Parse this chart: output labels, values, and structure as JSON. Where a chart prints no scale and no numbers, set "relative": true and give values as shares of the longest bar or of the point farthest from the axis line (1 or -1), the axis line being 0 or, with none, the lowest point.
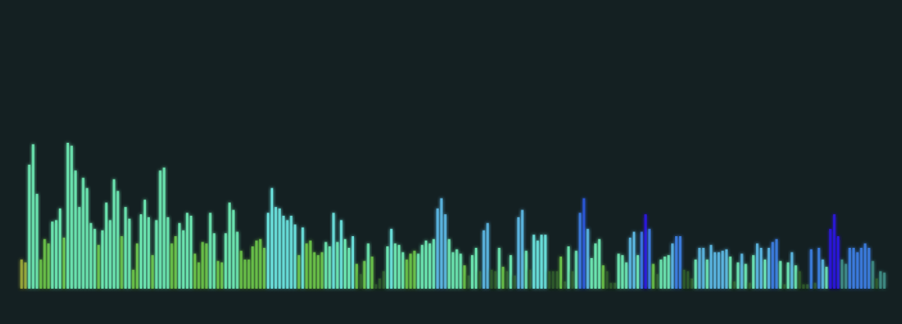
{
  "chart_data": {
    "type": "bar",
    "relative": true,
    "categories": [
      null,
      null,
      null,
      null,
      null,
      null,
      null,
      null,
      null,
      null,
      null,
      null,
      null,
      null,
      null,
      null,
      null,
      null,
      null,
      null,
      null,
      null,
      null,
      null,
      null,
      null,
      null,
      null,
      null,
      null,
      null,
      null,
      null,
      null,
      null,
      null,
      null,
      null,
      null,
      null,
      null,
      null,
      null,
      null,
      null,
      null,
      null,
      null,
      null,
      null,
      null,
      null,
      null,
      null,
      null,
      null,
      null,
      null,
      null,
      null,
      null,
      null,
      null,
      null,
      null,
      null,
      null,
      null,
      null,
      null,
      null,
      null,
      null,
      null,
      null,
      null,
      null,
      null,
      null,
      null,
      null,
      null,
      null,
      null,
      null,
      null,
      null,
      null,
      null,
      null,
      null,
      null,
      null,
      null,
      null,
      null,
      null,
      null,
      null,
      null,
      null,
      null,
      null,
      null,
      null,
      null,
      null,
      null,
      null,
      null,
      null,
      null,
      null,
      null,
      null,
      null,
      null,
      null,
      null,
      null,
      null,
      null,
      null,
      null,
      null,
      null,
      null,
      null,
      null,
      null,
      null,
      null,
      null,
      null,
      null,
      null,
      null,
      null,
      null,
      null,
      null,
      null,
      null,
      null,
      null,
      null,
      null,
      null,
      null,
      null,
      null,
      null,
      null,
      null,
      null,
      null,
      null,
      null,
      null,
      null,
      null,
      null,
      null,
      null,
      null,
      null,
      null,
      null,
      null,
      null,
      null,
      null,
      null,
      null,
      null,
      null,
      null,
      null,
      null,
      null,
      null,
      null,
      null,
      null,
      null,
      null,
      null,
      null,
      null,
      null,
      null,
      null,
      null,
      null,
      null,
      null,
      null,
      null,
      null,
      null,
      null,
      null,
      null,
      null,
      null,
      null,
      null,
      null,
      null,
      null,
      null,
      null,
      null,
      null,
      null,
      null,
      null,
      null,
      null,
      null,
      null,
      null,
      null,
      null,
      null
    ],
    "values": [
      0.2,
      0.18,
      0.85,
      0.99,
      0.65,
      0.2,
      0.34,
      0.31,
      0.46,
      0.47,
      0.55,
      0.35,
      1,
      0.98,
      0.81,
      0.56,
      0.76,
      0.69,
      0.45,
      0.41,
      0.3,
      0.4,
      0.59,
      0.47,
      0.75,
      0.67,
      0.36,
      0.56,
      0.48,
      0.13,
      0.31,
      0.51,
      0.61,
      0.49,
      0.23,
      0.47,
      0.81,
      0.83,
      0.49,
      0.31,
      0.36,
      0.45,
      0.4,
      0.52,
      0.5,
      0.24,
      0.18,
      0.32,
      0.31,
      0.52,
      0.38,
      0.19,
      0.18,
      0.38,
      0.59,
      0.54,
      0.39,
      0.26,
      0.2,
      0.2,
      0.29,
      0.33,
      0.34,
      0.28,
      0.52,
      0.69,
      0.56,
      0.55,
      0.5,
      0.47,
      0.5,
      0.44,
      0.23,
      0.42,
      0.31,
      0.33,
      0.25,
      0.23,
      0.25,
      0.32,
      0.29,
      0.52,
      0.32,
      0.47,
      0.34,
      0.28,
      0.36,
      0.17,
      0.1,
      0.19,
      0.31,
      0.22,
      0.03,
      0.07,
      0.12,
      0.29,
      0.41,
      0.31,
      0.3,
      0.25,
      0.2,
      0.24,
      0.26,
      0.24,
      0.3,
      0.33,
      0.31,
      0.34,
      0.55,
      0.62,
      0.51,
      0.34,
      0.25,
      0.27,
      0.24,
      0.16,
      0.09,
      0.23,
      0.28,
      0.12,
      0.4,
      0.45,
      0.13,
      0.12,
      0.28,
      0.15,
      0.12,
      0.23,
      0.09,
      0.49,
      0.54,
      0.26,
      0.13,
      0.37,
      0.33,
      0.37,
      0.37,
      0.12,
      0.12,
      0.12,
      0.22,
      0.05,
      0.29,
      0.12,
      0.26,
      0.52,
      0.62,
      0.41,
      0.21,
      0.31,
      0.34,
      0.16,
      0.12,
      0.04,
      0.04,
      0.24,
      0.23,
      0.18,
      0.35,
      0.39,
      0.23,
      0.39,
      0.51,
      0.41,
      0.17,
      0.1,
      0.2,
      0.22,
      0.23,
      0.31,
      0.36,
      0.36,
      0.13,
      0.12,
      0.07,
      0.2,
      0.28,
      0.28,
      0.2,
      0.3,
      0.25,
      0.25,
      0.26,
      0.27,
      0.22,
      0.05,
      0.18,
      0.24,
      0.17,
      0.04,
      0.23,
      0.31,
      0.28,
      0.2,
      0.28,
      0.32,
      0.34,
      0.19,
      0.03,
      0.18,
      0.25,
      0.16,
      0.12,
      0.03,
      0.03,
      0.27,
      0.04,
      0.28,
      0.2,
      0.15,
      0.41,
      0.51,
      0.36,
      0.2,
      0.17,
      0.28,
      0.28,
      0.25,
      0.28,
      0.31,
      0.28,
      0.19,
      0.07,
      0.12,
      0.11
    ],
    "colors": [
      "#9aa83a",
      "#9aa83a",
      "#6eeab4",
      "#6eeab4",
      "#6eeab4",
      "#6cc448",
      "#6cc448",
      "#6cc448",
      "#6eeab4",
      "#6eeab4",
      "#6eeab4",
      "#6cc448",
      "#6eeab4",
      "#6eeab4",
      "#6eeab4",
      "#6eeab4",
      "#6eeab4",
      "#6eeab4",
      "#6eeab4",
      "#6eeab4",
      "#6cc448",
      "#6eeab4",
      "#6eeab4",
      "#6eeab4",
      "#6eeab4",
      "#6eeab4",
      "#6cc448",
      "#6eeab4",
      "#6eeab4",
      "#6cc448",
      "#6cc448",
      "#6eeab4",
      "#6eeab4",
      "#6eeab4",
      "#6cc448",
      "#6eeab4",
      "#6eeab4",
      "#6eeab4",
      "#6eeab4",
      "#6cc448",
      "#6cc448",
      "#6eeab4",
      "#6eeab4",
      "#6eeab4",
      "#6eeab4",
      "#6cc448",
      "#6cc448",
      "#6cc448",
      "#6cc448",
      "#6eeab4",
      "#6eeab4",
      "#6cc448",
      "#6cc448",
      "#6eeab4",
      "#6eeab4",
      "#6eeab4",
      "#6eeab4",
      "#6cc448",
      "#6cc448",
      "#6cc448",
      "#6cc448",
      "#6cc448",
      "#6cc448",
      "#6cc448",
      "#6ce4e0",
      "#6ce4e0",
      "#6ce4e0",
      "#6ce4e0",
      "#6ce4e0",
      "#6ce4e0",
      "#6ce4e0",
      "#6ce4e0",
      "#6cc448",
      "#6ce4e0",
      "#6cc448",
      "#6cc448",
      "#6cc448",
      "#6cc448",
      "#6cc448",
      "#6eeab4",
      "#6eeab4",
      "#6ce4e0",
      "#6eeab4",
      "#6ce4e0",
      "#6eeab4",
      "#6eeab4",
      "#6ce4e0",
      "#6cc448",
      "#2f5a2c",
      "#6cc448",
      "#6eeab4",
      "#6cc448",
      "#2f5a2c",
      "#2f5a2c",
      "#2f5a2c",
      "#6eeab4",
      "#6ce4e0",
      "#6eeab4",
      "#6eeab4",
      "#6eeab4",
      "#6cc448",
      "#6cc448",
      "#6cc448",
      "#6eeab4",
      "#6eeab4",
      "#6eeab4",
      "#6eeab4",
      "#6eeab4",
      "#5cb8e4",
      "#5cb8e4",
      "#5cb8e4",
      "#6eeab4",
      "#6eeab4",
      "#6eeab4",
      "#6eeab4",
      "#6cc448",
      "#2f5a2c",
      "#6eeab4",
      "#6eeab4",
      "#2f5a2c",
      "#5cb8e4",
      "#5cb8e4",
      "#2f5a2c",
      "#2f5a2c",
      "#6eeab4",
      "#6cc448",
      "#2f5a2c",
      "#6eeab4",
      "#2f5a2c",
      "#5cb8e4",
      "#5cb8e4",
      "#6eeab4",
      "#2f5a2c",
      "#6ce4e0",
      "#6ce4e0",
      "#6ce4e0",
      "#6ce4e0",
      "#2f5a2c",
      "#2f5a2c",
      "#2f5a2c",
      "#6cc448",
      "#2f5a2c",
      "#6eeab4",
      "#2f5a2c",
      "#6eeab4",
      "#3c7ee4",
      "#2a58dc",
      "#5cb8e4",
      "#6eeab4",
      "#6eeab4",
      "#6eeab4",
      "#6cc448",
      "#2f5a2c",
      "#2f5a2c",
      "#2f5a2c",
      "#6eeab4",
      "#6eeab4",
      "#6eeab4",
      "#5cb8e4",
      "#5cb8e4",
      "#6eeab4",
      "#3c7ee4",
      "#2a16e0",
      "#3c7ee4",
      "#6cc448",
      "#2f5a2c",
      "#6eeab4",
      "#6eeab4",
      "#6eeab4",
      "#5cb8e4",
      "#3c7ee4",
      "#3c7ee4",
      "#2f5a2c",
      "#2f5a2c",
      "#2f5a2c",
      "#6eeab4",
      "#5cb8e4",
      "#5cb8e4",
      "#6eeab4",
      "#5cb8e4",
      "#5cb8e4",
      "#5cb8e4",
      "#5cb8e4",
      "#5cb8e4",
      "#6eeab4",
      "#2f5a2c",
      "#6eeab4",
      "#5cb8e4",
      "#6eeab4",
      "#2f5a2c",
      "#6eeab4",
      "#5cb8e4",
      "#5cb8e4",
      "#6eeab4",
      "#5cb8e4",
      "#3c7ee4",
      "#3c7ee4",
      "#6eeab4",
      "#2f5a2c",
      "#6eeab4",
      "#5cb8e4",
      "#6eeab4",
      "#2f5a2c",
      "#2f5a2c",
      "#2f5a2c",
      "#3c7ee4",
      "#2f5a2c",
      "#3c7ee4",
      "#5cb8e4",
      "#6eeab4",
      "#2a16e0",
      "#2a16e0",
      "#2a16e0",
      "#3e8c84",
      "#3e8c84",
      "#3c7ee4",
      "#3c7ee4",
      "#3c7ee4",
      "#3c7ee4",
      "#3c7ee4",
      "#3c7ee4",
      "#3e8c84",
      "#2f5a2c",
      "#3e8c84",
      "#3e8c84"
    ]
  }
}
